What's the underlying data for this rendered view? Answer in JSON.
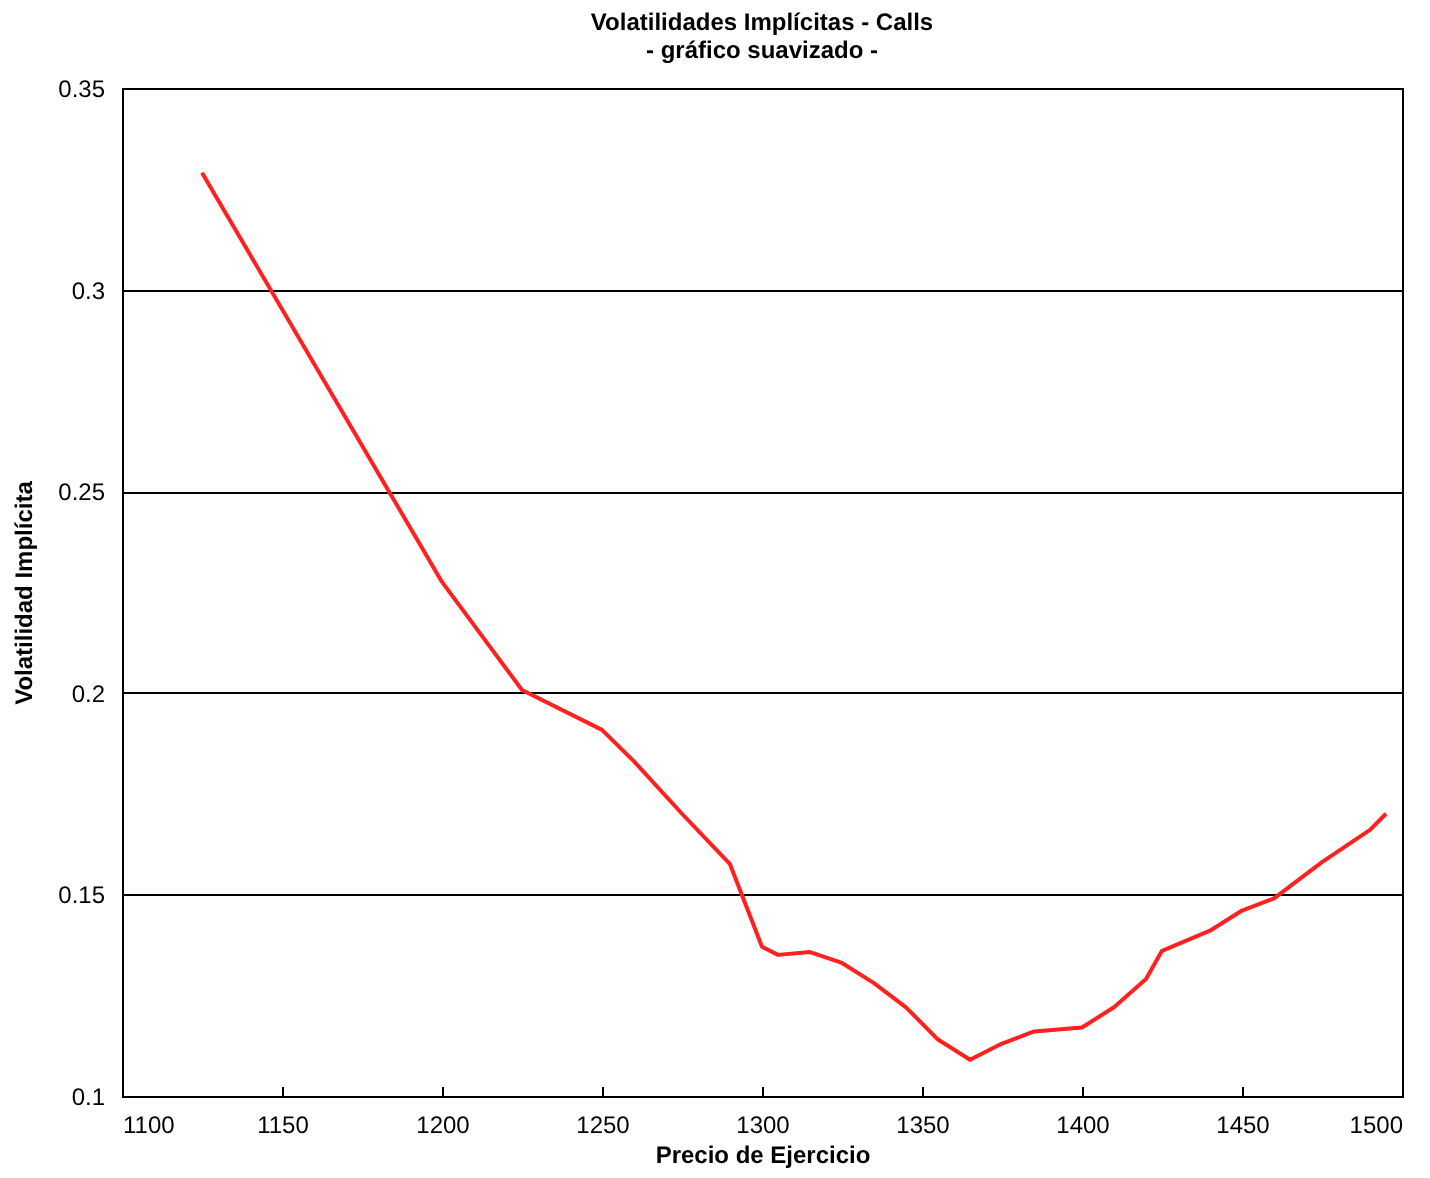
{
  "chart_data": {
    "type": "line",
    "title": "Volatilidades Implícitas - Calls",
    "subtitle": "- gráfico suavizado -",
    "xlabel": "Precio de Ejercicio",
    "ylabel": "Volatilidad Implícita",
    "x": [
      1125,
      1200,
      1225,
      1250,
      1260,
      1275,
      1290,
      1300,
      1305,
      1315,
      1325,
      1335,
      1345,
      1355,
      1365,
      1375,
      1385,
      1400,
      1410,
      1420,
      1425,
      1440,
      1450,
      1460,
      1475,
      1490,
      1495
    ],
    "series": [
      {
        "color": "#ff2020",
        "values": [
          0.329,
          0.2275,
          0.2007,
          0.1908,
          0.183,
          0.17,
          0.1575,
          0.137,
          0.135,
          0.1357,
          0.133,
          0.128,
          0.122,
          0.114,
          0.109,
          0.113,
          0.116,
          0.117,
          0.122,
          0.129,
          0.136,
          0.141,
          0.146,
          0.149,
          0.158,
          0.166,
          0.17
        ]
      }
    ],
    "xlim": [
      1100,
      1500
    ],
    "xticks": [
      1100,
      1150,
      1200,
      1250,
      1300,
      1350,
      1400,
      1450,
      1500
    ],
    "ylim": [
      0.1,
      0.35
    ],
    "yticks": [
      0.1,
      0.15,
      0.2,
      0.25,
      0.3,
      0.35
    ],
    "grid": "y",
    "marker": "none",
    "line_style": "solid"
  }
}
